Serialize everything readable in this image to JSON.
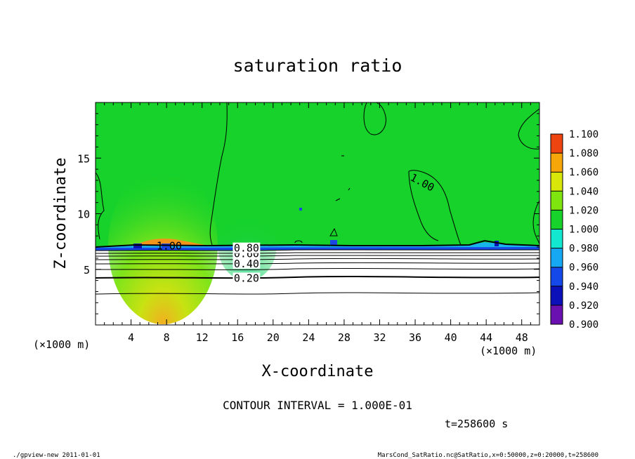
{
  "chart_data": {
    "type": "heatmap",
    "title": "saturation ratio",
    "xlabel": "X-coordinate",
    "ylabel": "Z-coordinate",
    "x_unit_left": "(×1000 m)",
    "x_unit_right": "(×1000 m)",
    "x_ticks": [
      "4",
      "8",
      "12",
      "16",
      "20",
      "24",
      "28",
      "32",
      "36",
      "40",
      "44",
      "48"
    ],
    "y_ticks": [
      "5",
      "10",
      "15"
    ],
    "xlim": [
      0,
      50
    ],
    "ylim": [
      0,
      20
    ],
    "colorbar": {
      "levels": [
        "0.900",
        "0.920",
        "0.940",
        "0.960",
        "0.980",
        "1.000",
        "1.020",
        "1.040",
        "1.060",
        "1.080",
        "1.100"
      ],
      "colors": [
        "#6a0fb0",
        "#0b10b8",
        "#1548e8",
        "#16a8f2",
        "#12e8d0",
        "#16d22a",
        "#7ee60e",
        "#d8e60a",
        "#f7a60a",
        "#ee4410",
        "#f59090"
      ]
    },
    "contour_labels": [
      {
        "text": "1.00",
        "x": 36.8,
        "z": 12.8
      },
      {
        "text": "0.20",
        "x": 17.0,
        "z": 4.2
      },
      {
        "text": "0.40",
        "x": 17.0,
        "z": 5.5
      },
      {
        "text": "0.60",
        "x": 17.0,
        "z": 6.4
      },
      {
        "text": "0.80",
        "x": 17.0,
        "z": 6.9
      },
      {
        "text": "1.00",
        "x": 8.3,
        "z": 7.1
      }
    ],
    "contour_interval_text": "CONTOUR INTERVAL = 1.000E-01",
    "time_text": "t=258600 s"
  },
  "footer": {
    "left": "./gpview-new   2011-01-01",
    "right": "MarsCond_SatRatio.nc@SatRatio,x=0:50000,z=0:20000,t=258600"
  }
}
